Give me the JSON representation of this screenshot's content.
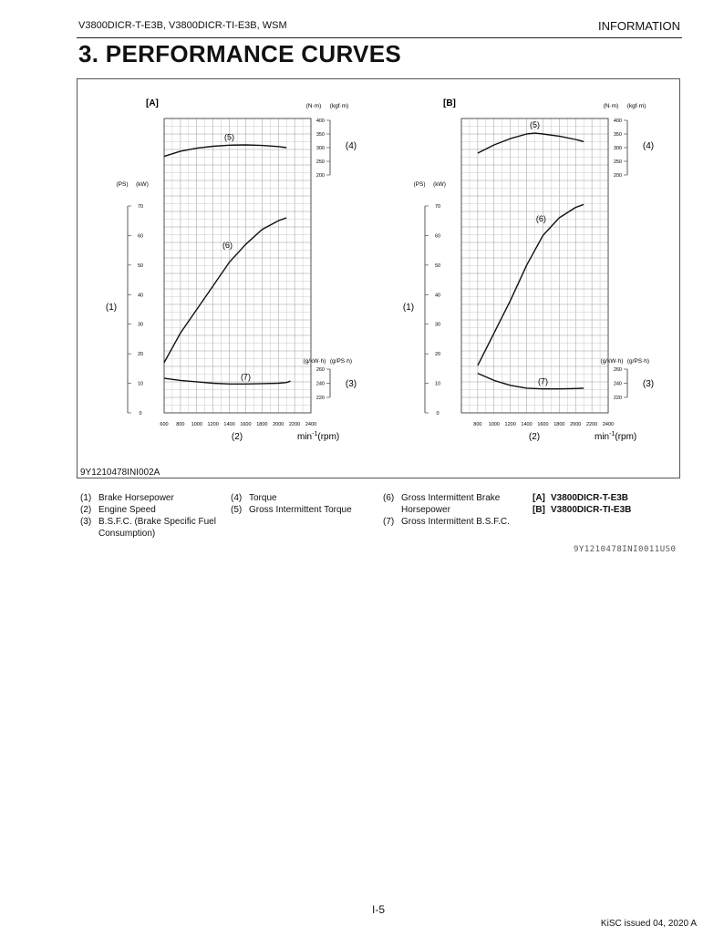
{
  "header": {
    "left": "V3800DICR-T-E3B, V3800DICR-TI-E3B, WSM",
    "right": "INFORMATION"
  },
  "page_title": "3.  PERFORMANCE CURVES",
  "figure_id": "9Y1210478INI002A",
  "chart_data": [
    {
      "type": "line",
      "panel": "[A]",
      "x_label": "(2)",
      "x_unit": "min",
      "x_unit_sup": "-1",
      "x_unit_suffix": "(rpm)",
      "x_ticks": [
        600,
        800,
        1000,
        1200,
        1400,
        1600,
        1800,
        2000,
        2200,
        2400
      ],
      "xlim": [
        600,
        2400
      ],
      "power": {
        "label_num": "(1)",
        "unit_ps": "(PS)",
        "unit_kw": "(kW)",
        "ticks": [
          0,
          10,
          20,
          30,
          40,
          50,
          60,
          70
        ],
        "ylim": [
          0,
          70
        ]
      },
      "torque": {
        "label_num": "(4)",
        "unit_nm": "(N·m)",
        "unit_kgf": "(kgf·m)",
        "ticks": [
          200,
          250,
          300,
          350,
          400
        ],
        "ylim": [
          200,
          400
        ]
      },
      "bsfc": {
        "label_num": "(3)",
        "unit_g_kwh": "(g/kW·h)",
        "unit_g_psh": "(g/PS·h)",
        "ticks": [
          220,
          240,
          260
        ],
        "ylim": [
          220,
          260
        ]
      },
      "series": [
        {
          "name": "(5)",
          "axis": "torque",
          "x": [
            600,
            800,
            1000,
            1200,
            1400,
            1600,
            1800,
            2000,
            2100
          ],
          "values": [
            268,
            287,
            298,
            305,
            309,
            310,
            308,
            304,
            300
          ]
        },
        {
          "name": "(6)",
          "axis": "power",
          "x": [
            600,
            800,
            1000,
            1200,
            1400,
            1600,
            1800,
            2000,
            2100
          ],
          "values": [
            17,
            27,
            35,
            43,
            51,
            57,
            62,
            65,
            66
          ]
        },
        {
          "name": "(7)",
          "axis": "bsfc",
          "x": [
            600,
            800,
            1000,
            1200,
            1400,
            1600,
            1800,
            2000,
            2100,
            2150
          ],
          "values": [
            247,
            244,
            242,
            240,
            239,
            239,
            239.5,
            240,
            241,
            243
          ]
        }
      ]
    },
    {
      "type": "line",
      "panel": "[B]",
      "x_label": "(2)",
      "x_unit": "min",
      "x_unit_sup": "-1",
      "x_unit_suffix": "(rpm)",
      "x_ticks": [
        800,
        1000,
        1200,
        1400,
        1600,
        1800,
        2000,
        2200,
        2400
      ],
      "xlim": [
        800,
        2400
      ],
      "power": {
        "label_num": "(1)",
        "unit_ps": "(PS)",
        "unit_kw": "(kW)",
        "ticks": [
          0,
          10,
          20,
          30,
          40,
          50,
          60,
          70
        ],
        "ylim": [
          0,
          70
        ]
      },
      "torque": {
        "label_num": "(4)",
        "unit_nm": "(N·m)",
        "unit_kgf": "(kgf·m)",
        "ticks": [
          200,
          250,
          300,
          350,
          400
        ],
        "ylim": [
          200,
          400
        ]
      },
      "bsfc": {
        "label_num": "(3)",
        "unit_g_kwh": "(g/kW·h)",
        "unit_g_psh": "(g/PS·h)",
        "ticks": [
          220,
          240,
          260
        ],
        "ylim": [
          220,
          260
        ]
      },
      "series": [
        {
          "name": "(5)",
          "axis": "torque",
          "x": [
            800,
            1000,
            1200,
            1400,
            1500,
            1600,
            1800,
            2000,
            2100
          ],
          "values": [
            280,
            310,
            333,
            350,
            353,
            350,
            342,
            330,
            322
          ]
        },
        {
          "name": "(6)",
          "axis": "power",
          "x": [
            800,
            1000,
            1200,
            1400,
            1600,
            1800,
            2000,
            2100
          ],
          "values": [
            16,
            27,
            38,
            50,
            60,
            66,
            69.5,
            70.5
          ]
        },
        {
          "name": "(7)",
          "axis": "bsfc",
          "x": [
            800,
            1000,
            1200,
            1400,
            1600,
            1800,
            2000,
            2100
          ],
          "values": [
            254,
            244,
            237,
            233,
            232,
            232,
            232.5,
            233
          ]
        }
      ]
    }
  ],
  "legend": {
    "left": [
      {
        "num": "(1)",
        "text": "Brake Horsepower"
      },
      {
        "num": "(2)",
        "text": "Engine Speed"
      },
      {
        "num": "(3)",
        "text": "B.S.F.C. (Brake Specific Fuel"
      },
      {
        "num": "",
        "text": "Consumption)"
      }
    ],
    "mid": [
      {
        "num": "(4)",
        "text": "Torque"
      },
      {
        "num": "(5)",
        "text": "Gross Intermittent Torque"
      }
    ],
    "right": [
      {
        "num": "(6)",
        "text": "Gross Intermittent Brake"
      },
      {
        "num": "",
        "text": "Horsepower"
      },
      {
        "num": "",
        "text": ""
      },
      {
        "num": "(7)",
        "text": "Gross Intermittent B.S.F.C."
      }
    ],
    "models": [
      {
        "num": "[A]",
        "text": "V3800DICR-T-E3B"
      },
      {
        "num": "[B]",
        "text": "V3800DICR-TI-E3B"
      }
    ]
  },
  "ref_code": "9Y1210478INI0011US0",
  "page_number": "I-5",
  "footer": "KiSC issued 04, 2020 A"
}
